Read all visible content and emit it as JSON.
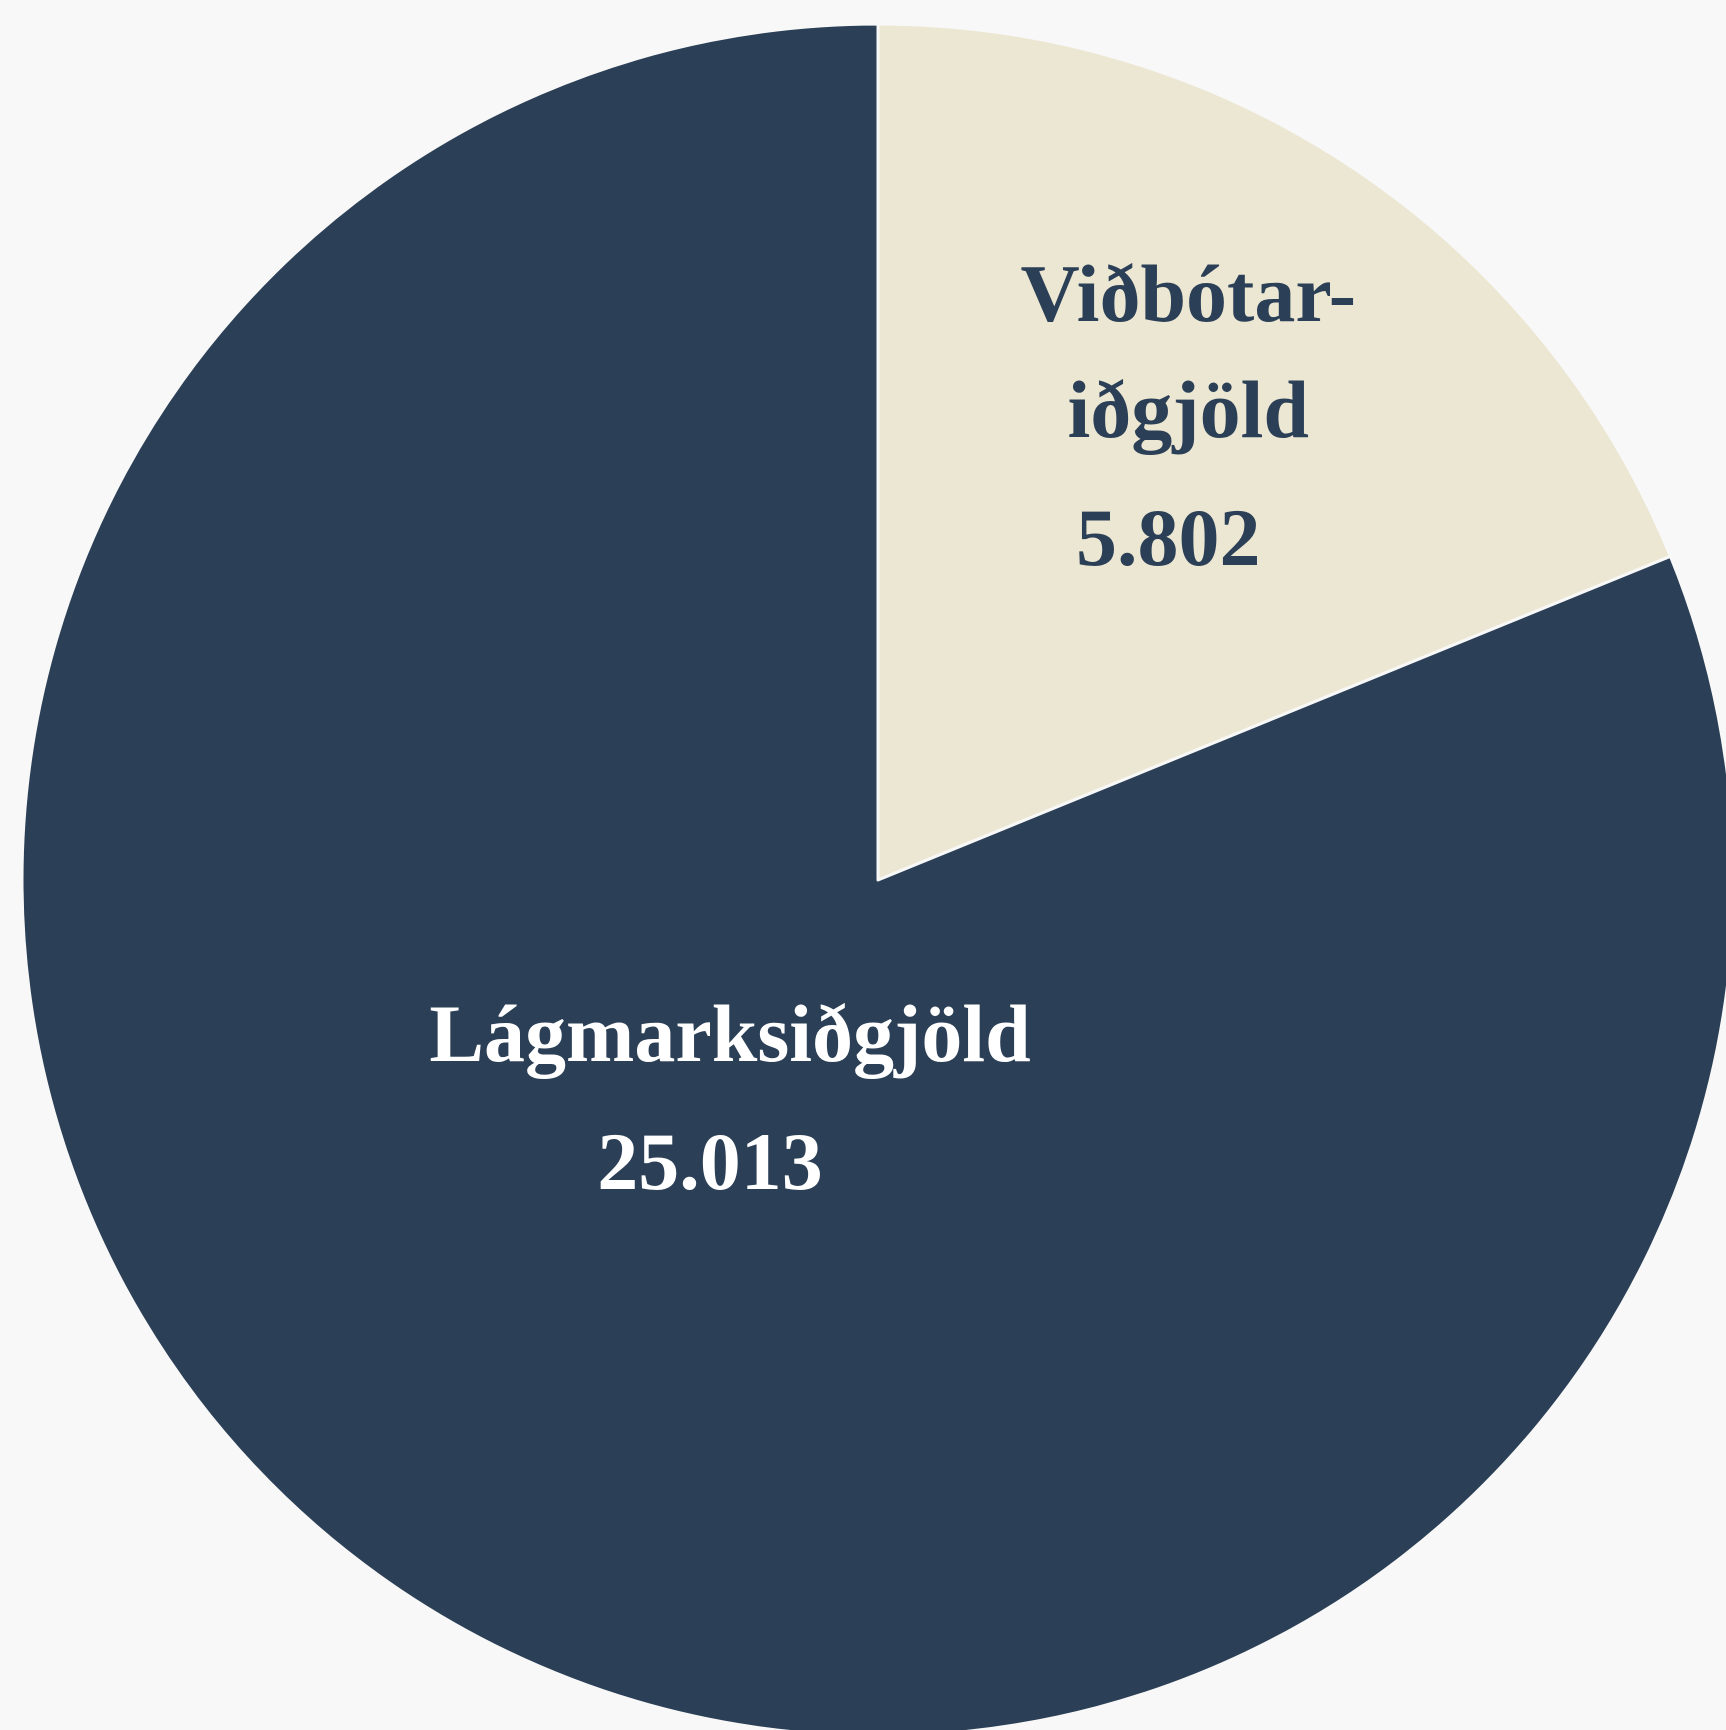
{
  "chart_data": {
    "type": "pie",
    "categories": [
      [
        "Viðbótar-",
        "iðgjöld"
      ],
      [
        "Lágmarksiðgjöld"
      ]
    ],
    "values": [
      5802,
      25013
    ],
    "value_labels": [
      "5.802",
      "25.013"
    ],
    "colors": [
      "#ece7d3",
      "#2b3f56"
    ],
    "label_colors": [
      "#2b3f56",
      "#ffffff"
    ]
  }
}
